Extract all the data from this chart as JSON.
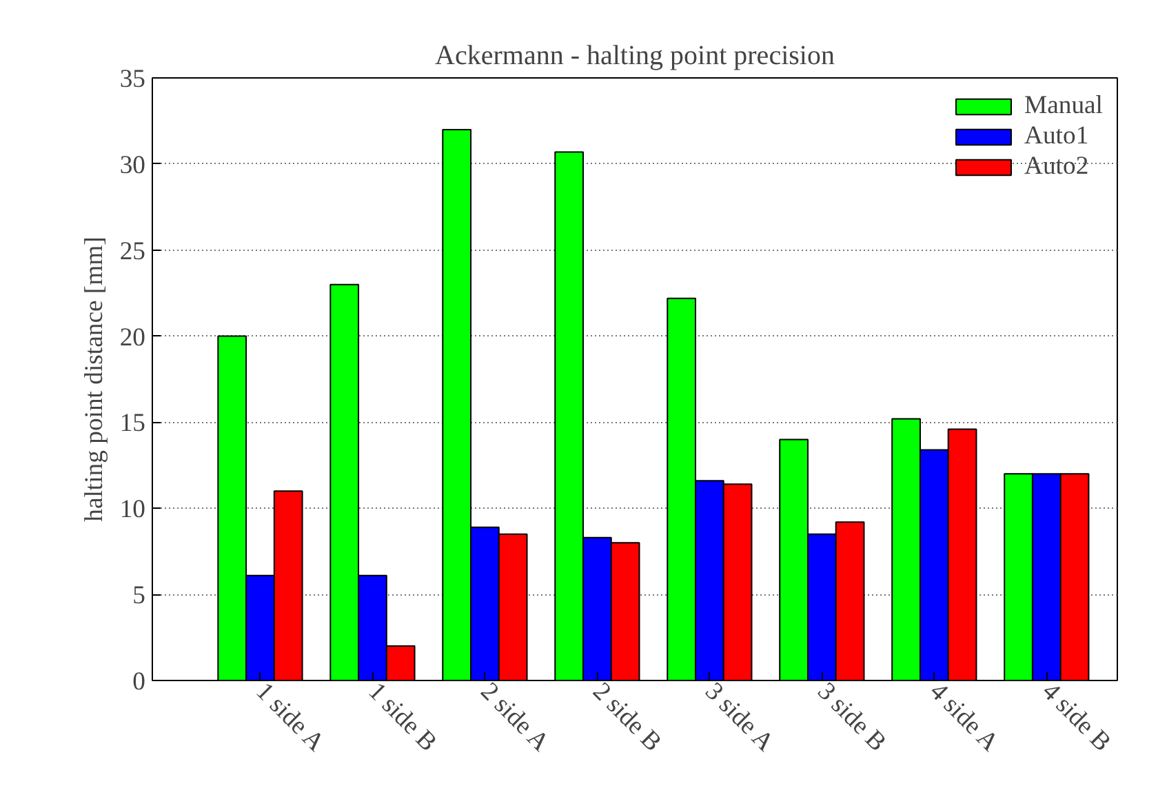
{
  "chart_data": {
    "type": "bar",
    "title": "Ackermann - halting point precision",
    "ylabel": "halting point distance [mm]",
    "categories": [
      "1 side A",
      "1 side B",
      "2 side A",
      "2 side B",
      "3 side A",
      "3 side B",
      "4 side A",
      "4 side B"
    ],
    "series": [
      {
        "name": "Manual",
        "color": "#00ff00",
        "values": [
          20,
          23,
          32,
          30.7,
          22.2,
          14,
          15.2,
          12
        ]
      },
      {
        "name": "Auto1",
        "color": "#0000ff",
        "values": [
          6.1,
          6.1,
          8.9,
          8.3,
          11.6,
          8.5,
          13.4,
          12
        ]
      },
      {
        "name": "Auto2",
        "color": "#ff0000",
        "values": [
          11,
          2,
          8.5,
          8,
          11.4,
          9.2,
          14.6,
          12
        ]
      }
    ],
    "ylim": [
      0,
      35
    ],
    "yticks": [
      0,
      5,
      10,
      15,
      20,
      25,
      30,
      35
    ],
    "grid": "y",
    "legend": "top right"
  }
}
